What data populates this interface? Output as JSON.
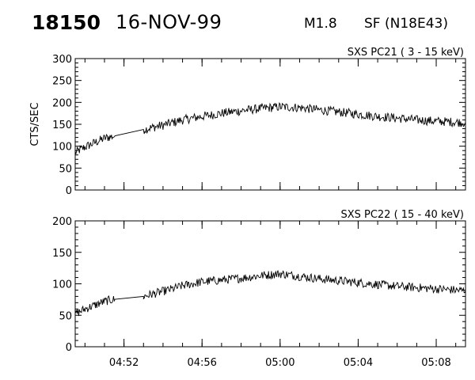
{
  "header": {
    "event_id": "18150",
    "date": "16-NOV-99",
    "flare_class": "M1.8",
    "flare_location": "SF (N18E43)"
  },
  "chart_data": [
    {
      "type": "line",
      "title": "SXS PC21  (  3 - 15 keV)",
      "ylabel": "CTS/SEC",
      "xlim": [
        "04:49:30",
        "05:09:30"
      ],
      "ylim": [
        0,
        300
      ],
      "yticks": [
        0,
        50,
        100,
        150,
        200,
        250,
        300
      ],
      "xticks": [
        "04:52",
        "04:56",
        "05:00",
        "05:04",
        "05:08"
      ],
      "grid": false,
      "series": [
        {
          "points": [
            [
              "04:49:30",
              85
            ],
            [
              "04:49:45",
              92
            ],
            [
              "04:50:00",
              98
            ],
            [
              "04:50:15",
              103
            ],
            [
              "04:50:30",
              108
            ],
            [
              "04:50:45",
              113
            ],
            [
              "04:51:00",
              118
            ],
            [
              "04:51:15",
              121
            ],
            [
              "04:51:30",
              123
            ],
            [
              "04:51:35",
              106
            ],
            [
              "04:53:00",
              138
            ],
            [
              "04:53:30",
              143
            ],
            [
              "04:54:00",
              148
            ],
            [
              "04:54:30",
              154
            ],
            [
              "04:55:00",
              160
            ],
            [
              "04:55:30",
              164
            ],
            [
              "04:56:00",
              168
            ],
            [
              "04:57:00",
              175
            ],
            [
              "04:58:00",
              181
            ],
            [
              "04:59:00",
              186
            ],
            [
              "05:00:00",
              190
            ],
            [
              "05:01:00",
              188
            ],
            [
              "05:02:00",
              183
            ],
            [
              "05:03:00",
              178
            ],
            [
              "05:04:00",
              173
            ],
            [
              "05:05:00",
              168
            ],
            [
              "05:06:00",
              164
            ],
            [
              "05:07:00",
              160
            ],
            [
              "05:08:00",
              157
            ],
            [
              "05:09:00",
              155
            ],
            [
              "05:09:30",
              154
            ]
          ]
        }
      ]
    },
    {
      "type": "line",
      "title": "SXS PC22  ( 15 - 40 keV)",
      "ylabel": "",
      "xlim": [
        "04:49:30",
        "05:09:30"
      ],
      "ylim": [
        0,
        200
      ],
      "yticks": [
        0,
        50,
        100,
        150,
        200
      ],
      "xticks": [
        "04:52",
        "04:56",
        "05:00",
        "05:04",
        "05:08"
      ],
      "grid": false,
      "series": [
        {
          "points": [
            [
              "04:49:30",
              52
            ],
            [
              "04:49:45",
              56
            ],
            [
              "04:50:00",
              60
            ],
            [
              "04:50:15",
              63
            ],
            [
              "04:50:30",
              66
            ],
            [
              "04:50:45",
              69
            ],
            [
              "04:51:00",
              72
            ],
            [
              "04:51:15",
              74
            ],
            [
              "04:51:30",
              75
            ],
            [
              "04:51:35",
              70
            ],
            [
              "04:53:00",
              80
            ],
            [
              "04:53:30",
              84
            ],
            [
              "04:54:00",
              88
            ],
            [
              "04:54:30",
              92
            ],
            [
              "04:55:00",
              97
            ],
            [
              "04:55:30",
              100
            ],
            [
              "04:56:00",
              103
            ],
            [
              "04:57:00",
              106
            ],
            [
              "04:58:00",
              109
            ],
            [
              "04:59:00",
              113
            ],
            [
              "05:00:00",
              116
            ],
            [
              "05:01:00",
              112
            ],
            [
              "05:02:00",
              108
            ],
            [
              "05:03:00",
              105
            ],
            [
              "05:04:00",
              102
            ],
            [
              "05:05:00",
              99
            ],
            [
              "05:06:00",
              96
            ],
            [
              "05:07:00",
              94
            ],
            [
              "05:08:00",
              92
            ],
            [
              "05:09:00",
              90
            ],
            [
              "05:09:30",
              89
            ]
          ]
        }
      ]
    }
  ]
}
